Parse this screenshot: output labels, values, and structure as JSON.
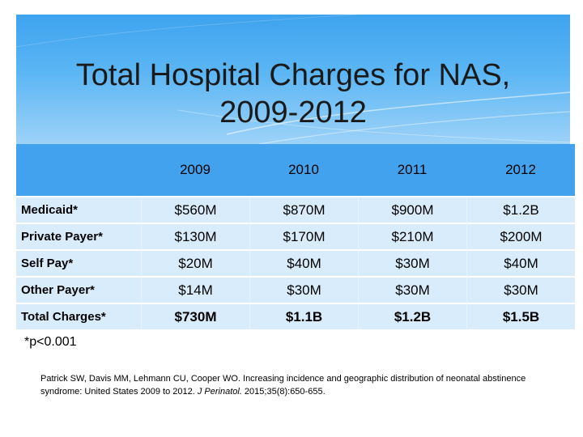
{
  "slide": {
    "title_line1": "Total Hospital Charges for NAS,",
    "title_line2": "2009-2012"
  },
  "table": {
    "corner": "",
    "years": [
      "2009",
      "2010",
      "2011",
      "2012"
    ],
    "rows": [
      {
        "label": "Medicaid*",
        "values": [
          "$560M",
          "$870M",
          "$900M",
          "$1.2B"
        ]
      },
      {
        "label": "Private Payer*",
        "values": [
          "$130M",
          "$170M",
          "$210M",
          "$200M"
        ]
      },
      {
        "label": "Self Pay*",
        "values": [
          "$20M",
          "$40M",
          "$30M",
          "$40M"
        ]
      },
      {
        "label": "Other Payer*",
        "values": [
          "$14M",
          "$30M",
          "$30M",
          "$30M"
        ]
      },
      {
        "label": "Total Charges*",
        "values": [
          "$730M",
          "$1.1B",
          "$1.2B",
          "$1.5B"
        ]
      }
    ]
  },
  "footnote": "*p<0.001",
  "citation": {
    "text_before": "Patrick SW, Davis MM, Lehmann CU, Cooper WO. Increasing incidence and geographic distribution of neonatal abstinence syndrome: United States 2009 to 2012. ",
    "journal": "J Perinatol.",
    "text_after": " 2015;35(8):650-655."
  },
  "colors": {
    "header_blue": "#42a2ee",
    "row_fill": "#d9ecfb"
  }
}
